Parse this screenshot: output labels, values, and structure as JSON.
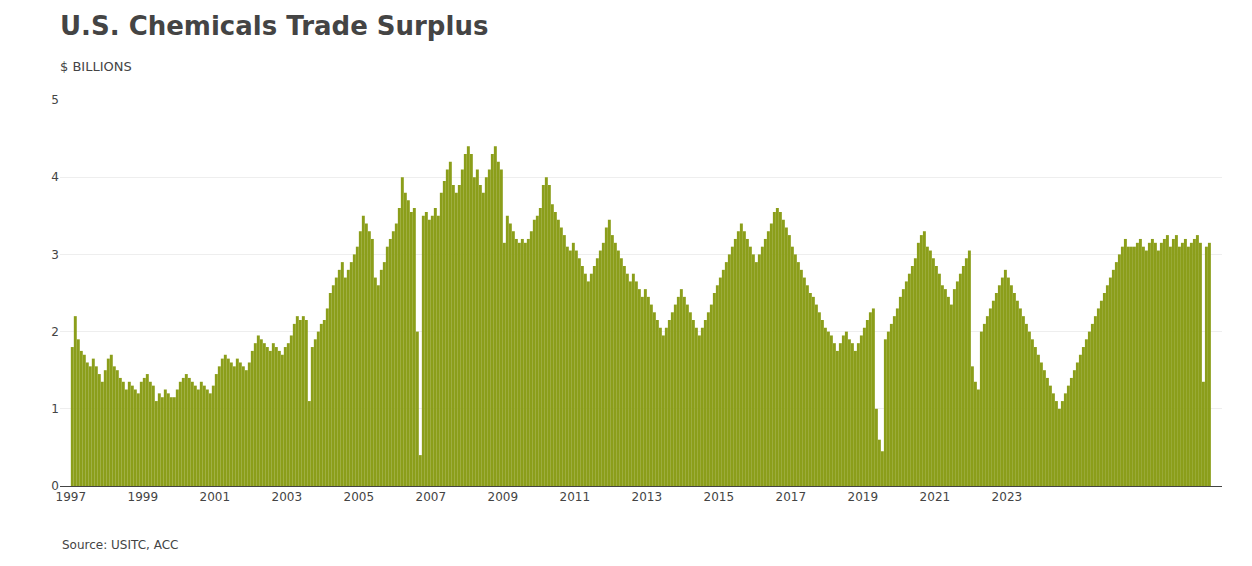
{
  "chart_data": {
    "type": "bar",
    "title": "U.S. Chemicals Trade Surplus",
    "subtitle": "$ BILLIONS",
    "source": "Source: USITC, ACC",
    "color": "#8B9E1A",
    "grid": true,
    "xlim": [
      1996.7,
      2028.975
    ],
    "xticks": [
      1997,
      1999,
      2001,
      2003,
      2005,
      2007,
      2009,
      2011,
      2013,
      2015,
      2017,
      2019,
      2021,
      2023
    ],
    "ylim": [
      0,
      5
    ],
    "yticks": [
      0,
      1,
      2,
      3,
      4,
      5
    ],
    "x": [
      1997.0416666667,
      1997.125,
      1997.2083333333,
      1997.2916666667,
      1997.375,
      1997.4583333333,
      1997.5416666667,
      1997.625,
      1997.7083333333,
      1997.7916666667,
      1997.875,
      1997.9583333333,
      1998.0416666667,
      1998.125,
      1998.2083333333,
      1998.2916666667,
      1998.375,
      1998.4583333333,
      1998.5416666667,
      1998.625,
      1998.7083333333,
      1998.7916666667,
      1998.875,
      1998.9583333333,
      1999.0416666667,
      1999.125,
      1999.2083333333,
      1999.2916666667,
      1999.375,
      1999.4583333333,
      1999.5416666667,
      1999.625,
      1999.7083333333,
      1999.7916666667,
      1999.875,
      1999.9583333333,
      2000.0416666667,
      2000.125,
      2000.2083333333,
      2000.2916666667,
      2000.375,
      2000.4583333333,
      2000.5416666667,
      2000.625,
      2000.7083333333,
      2000.7916666667,
      2000.875,
      2000.9583333333,
      2001.0416666667,
      2001.125,
      2001.2083333333,
      2001.2916666667,
      2001.375,
      2001.4583333333,
      2001.5416666667,
      2001.625,
      2001.7083333333,
      2001.7916666667,
      2001.875,
      2001.9583333333,
      2002.0416666667,
      2002.125,
      2002.2083333333,
      2002.2916666667,
      2002.375,
      2002.4583333333,
      2002.5416666667,
      2002.625,
      2002.7083333333,
      2002.7916666667,
      2002.875,
      2002.9583333333,
      2003.0416666667,
      2003.125,
      2003.2083333333,
      2003.2916666667,
      2003.375,
      2003.4583333333,
      2003.5416666667,
      2003.625,
      2003.7083333333,
      2003.7916666667,
      2003.875,
      2003.9583333333,
      2004.0416666667,
      2004.125,
      2004.2083333333,
      2004.2916666667,
      2004.375,
      2004.4583333333,
      2004.5416666667,
      2004.625,
      2004.7083333333,
      2004.7916666667,
      2004.875,
      2004.9583333333,
      2005.0416666667,
      2005.125,
      2005.2083333333,
      2005.2916666667,
      2005.375,
      2005.4583333333,
      2005.5416666667,
      2005.625,
      2005.7083333333,
      2005.7916666667,
      2005.875,
      2005.9583333333,
      2006.0416666667,
      2006.125,
      2006.2083333333,
      2006.2916666667,
      2006.375,
      2006.4583333333,
      2006.5416666667,
      2006.625,
      2006.7083333333,
      2006.7916666667,
      2006.875,
      2006.9583333333,
      2007.0416666667,
      2007.125,
      2007.2083333333,
      2007.2916666667,
      2007.375,
      2007.4583333333,
      2007.5416666667,
      2007.625,
      2007.7083333333,
      2007.7916666667,
      2007.875,
      2007.9583333333,
      2008.0416666667,
      2008.125,
      2008.2083333333,
      2008.2916666667,
      2008.375,
      2008.4583333333,
      2008.5416666667,
      2008.625,
      2008.7083333333,
      2008.7916666667,
      2008.875,
      2008.9583333333,
      2009.0416666667,
      2009.125,
      2009.2083333333,
      2009.2916666667,
      2009.375,
      2009.4583333333,
      2009.5416666667,
      2009.625,
      2009.7083333333,
      2009.7916666667,
      2009.875,
      2009.9583333333,
      2010.0416666667,
      2010.125,
      2010.2083333333,
      2010.2916666667,
      2010.375,
      2010.4583333333,
      2010.5416666667,
      2010.625,
      2010.7083333333,
      2010.7916666667,
      2010.875,
      2010.9583333333,
      2011.0416666667,
      2011.125,
      2011.2083333333,
      2011.2916666667,
      2011.375,
      2011.4583333333,
      2011.5416666667,
      2011.625,
      2011.7083333333,
      2011.7916666667,
      2011.875,
      2011.9583333333,
      2012.0416666667,
      2012.125,
      2012.2083333333,
      2012.2916666667,
      2012.375,
      2012.4583333333,
      2012.5416666667,
      2012.625,
      2012.7083333333,
      2012.7916666667,
      2012.875,
      2012.9583333333,
      2013.0416666667,
      2013.125,
      2013.2083333333,
      2013.2916666667,
      2013.375,
      2013.4583333333,
      2013.5416666667,
      2013.625,
      2013.7083333333,
      2013.7916666667,
      2013.875,
      2013.9583333333,
      2014.0416666667,
      2014.125,
      2014.2083333333,
      2014.2916666667,
      2014.375,
      2014.4583333333,
      2014.5416666667,
      2014.625,
      2014.7083333333,
      2014.7916666667,
      2014.875,
      2014.9583333333,
      2015.0416666667,
      2015.125,
      2015.2083333333,
      2015.2916666667,
      2015.375,
      2015.4583333333,
      2015.5416666667,
      2015.625,
      2015.7083333333,
      2015.7916666667,
      2015.875,
      2015.9583333333,
      2016.0416666667,
      2016.125,
      2016.2083333333,
      2016.2916666667,
      2016.375,
      2016.4583333333,
      2016.5416666667,
      2016.625,
      2016.7083333333,
      2016.7916666667,
      2016.875,
      2016.9583333333,
      2017.0416666667,
      2017.125,
      2017.2083333333,
      2017.2916666667,
      2017.375,
      2017.4583333333,
      2017.5416666667,
      2017.625,
      2017.7083333333,
      2017.7916666667,
      2017.875,
      2017.9583333333,
      2018.0416666667,
      2018.125,
      2018.2083333333,
      2018.2916666667,
      2018.375,
      2018.4583333333,
      2018.5416666667,
      2018.625,
      2018.7083333333,
      2018.7916666667,
      2018.875,
      2018.9583333333,
      2019.0416666667,
      2019.125,
      2019.2083333333,
      2019.2916666667,
      2019.375,
      2019.4583333333,
      2019.5416666667,
      2019.625,
      2019.7083333333,
      2019.7916666667,
      2019.875,
      2019.9583333333,
      2020.0416666667,
      2020.125,
      2020.2083333333,
      2020.2916666667,
      2020.375,
      2020.4583333333,
      2020.5416666667,
      2020.625,
      2020.7083333333,
      2020.7916666667,
      2020.875,
      2020.9583333333,
      2021.0416666667,
      2021.125,
      2021.2083333333,
      2021.2916666667,
      2021.375,
      2021.4583333333,
      2021.5416666667,
      2021.625,
      2021.7083333333,
      2021.7916666667,
      2021.875,
      2021.9583333333,
      2022.0416666667,
      2022.125,
      2022.2083333333,
      2022.2916666667,
      2022.375,
      2022.4583333333,
      2022.5416666667,
      2022.625,
      2022.7083333333,
      2022.7916666667,
      2022.875,
      2022.9583333333,
      2023.0416666667,
      2023.125,
      2023.2083333333,
      2023.2916666667,
      2023.375,
      2023.4583333333,
      2023.5416666667,
      2023.625,
      2023.7083333333,
      2023.7916666667,
      2023.875,
      2023.9583333333,
      2024.0416666667,
      2024.125,
      2024.2083333333,
      2024.2916666667,
      2024.375,
      2024.4583333333,
      2024.5416666667,
      2024.625,
      2024.7083333333,
      2024.7916666667,
      2024.875,
      2024.9583333333,
      2025.0416666667,
      2025.125,
      2025.2083333333,
      2025.2916666667,
      2025.375,
      2025.4583333333,
      2025.5416666667,
      2025.625,
      2025.7083333333,
      2025.7916666667,
      2025.875,
      2025.9583333333,
      2026.0416666667,
      2026.125,
      2026.2083333333,
      2026.2916666667,
      2026.375,
      2026.4583333333,
      2026.5416666667,
      2026.625,
      2026.7083333333,
      2026.7916666667,
      2026.875,
      2026.9583333333,
      2027.0416666667,
      2027.125,
      2027.2083333333,
      2027.2916666667,
      2027.375,
      2027.4583333333,
      2027.5416666667,
      2027.625,
      2027.7083333333,
      2027.7916666667,
      2027.875,
      2027.9583333333,
      2028.0416666667,
      2028.125,
      2028.2083333333,
      2028.2916666667,
      2028.375,
      2028.4583333333,
      2028.5416666667,
      2028.625
    ],
    "values": [
      1.8,
      2.2,
      1.9,
      1.75,
      1.7,
      1.6,
      1.55,
      1.65,
      1.55,
      1.45,
      1.35,
      1.5,
      1.65,
      1.7,
      1.55,
      1.5,
      1.4,
      1.35,
      1.25,
      1.35,
      1.3,
      1.25,
      1.2,
      1.35,
      1.4,
      1.45,
      1.35,
      1.3,
      1.1,
      1.2,
      1.15,
      1.25,
      1.2,
      1.15,
      1.15,
      1.25,
      1.35,
      1.4,
      1.45,
      1.4,
      1.35,
      1.3,
      1.25,
      1.35,
      1.3,
      1.25,
      1.2,
      1.3,
      1.45,
      1.55,
      1.65,
      1.7,
      1.65,
      1.6,
      1.55,
      1.65,
      1.6,
      1.55,
      1.5,
      1.6,
      1.75,
      1.85,
      1.95,
      1.9,
      1.85,
      1.8,
      1.75,
      1.85,
      1.8,
      1.75,
      1.7,
      1.8,
      1.85,
      1.95,
      2.1,
      2.2,
      2.15,
      2.2,
      2.15,
      1.1,
      1.8,
      1.9,
      2.0,
      2.1,
      2.15,
      2.3,
      2.5,
      2.6,
      2.7,
      2.8,
      2.9,
      2.7,
      2.8,
      2.9,
      3.0,
      3.1,
      3.3,
      3.5,
      3.4,
      3.3,
      3.2,
      2.7,
      2.6,
      2.8,
      2.9,
      3.1,
      3.2,
      3.3,
      3.4,
      3.6,
      4.0,
      3.8,
      3.7,
      3.55,
      3.6,
      2.0,
      0.4,
      3.5,
      3.55,
      3.45,
      3.5,
      3.6,
      3.5,
      3.8,
      3.95,
      4.1,
      4.2,
      3.9,
      3.8,
      3.9,
      4.1,
      4.3,
      4.4,
      4.3,
      4.0,
      4.1,
      3.9,
      3.8,
      4.0,
      4.1,
      4.3,
      4.4,
      4.2,
      4.1,
      3.15,
      3.5,
      3.4,
      3.3,
      3.2,
      3.15,
      3.2,
      3.15,
      3.2,
      3.3,
      3.45,
      3.5,
      3.6,
      3.9,
      4.0,
      3.9,
      3.65,
      3.55,
      3.45,
      3.35,
      3.25,
      3.1,
      3.05,
      3.15,
      3.05,
      2.95,
      2.85,
      2.75,
      2.65,
      2.75,
      2.85,
      2.95,
      3.05,
      3.15,
      3.35,
      3.45,
      3.25,
      3.15,
      3.05,
      2.95,
      2.85,
      2.75,
      2.65,
      2.75,
      2.65,
      2.55,
      2.45,
      2.55,
      2.45,
      2.35,
      2.25,
      2.15,
      2.05,
      1.95,
      2.05,
      2.15,
      2.25,
      2.35,
      2.45,
      2.55,
      2.45,
      2.35,
      2.25,
      2.15,
      2.05,
      1.95,
      2.05,
      2.15,
      2.25,
      2.35,
      2.5,
      2.6,
      2.7,
      2.8,
      2.9,
      3.0,
      3.1,
      3.2,
      3.3,
      3.4,
      3.3,
      3.2,
      3.1,
      3.0,
      2.9,
      3.0,
      3.1,
      3.2,
      3.3,
      3.4,
      3.55,
      3.6,
      3.55,
      3.45,
      3.35,
      3.25,
      3.1,
      3.0,
      2.9,
      2.8,
      2.7,
      2.6,
      2.5,
      2.45,
      2.35,
      2.25,
      2.15,
      2.05,
      2.0,
      1.95,
      1.85,
      1.75,
      1.85,
      1.95,
      2.0,
      1.9,
      1.85,
      1.75,
      1.85,
      1.95,
      2.05,
      2.15,
      2.25,
      2.3,
      1.0,
      0.6,
      0.45,
      1.9,
      2.0,
      2.1,
      2.2,
      2.3,
      2.45,
      2.55,
      2.65,
      2.75,
      2.85,
      2.95,
      3.15,
      3.25,
      3.3,
      3.1,
      3.05,
      2.95,
      2.85,
      2.75,
      2.6,
      2.55,
      2.45,
      2.35,
      2.55,
      2.65,
      2.75,
      2.85,
      2.95,
      3.05,
      1.55,
      1.35,
      1.25,
      2.0,
      2.1,
      2.2,
      2.3,
      2.4,
      2.5,
      2.6,
      2.7,
      2.8,
      2.7,
      2.6,
      2.5,
      2.4,
      2.3,
      2.2,
      2.1,
      2.0,
      1.9,
      1.8,
      1.7,
      1.6,
      1.5,
      1.4,
      1.3,
      1.2,
      1.1,
      1.0,
      1.1,
      1.2,
      1.3,
      1.4,
      1.5,
      1.6,
      1.7,
      1.8,
      1.9,
      2.0,
      2.1,
      2.2,
      2.3,
      2.4,
      2.5,
      2.6,
      2.7,
      2.8,
      2.9,
      3.0,
      3.1,
      3.2,
      3.1,
      3.1,
      3.1,
      3.15,
      3.2,
      3.1,
      3.05,
      3.15,
      3.2,
      3.15,
      3.05,
      3.15,
      3.2,
      3.25,
      3.1,
      3.2,
      3.25,
      3.1,
      3.15,
      3.2,
      3.1,
      3.15,
      3.2,
      3.25,
      3.15,
      1.35,
      3.1,
      3.15
    ]
  }
}
